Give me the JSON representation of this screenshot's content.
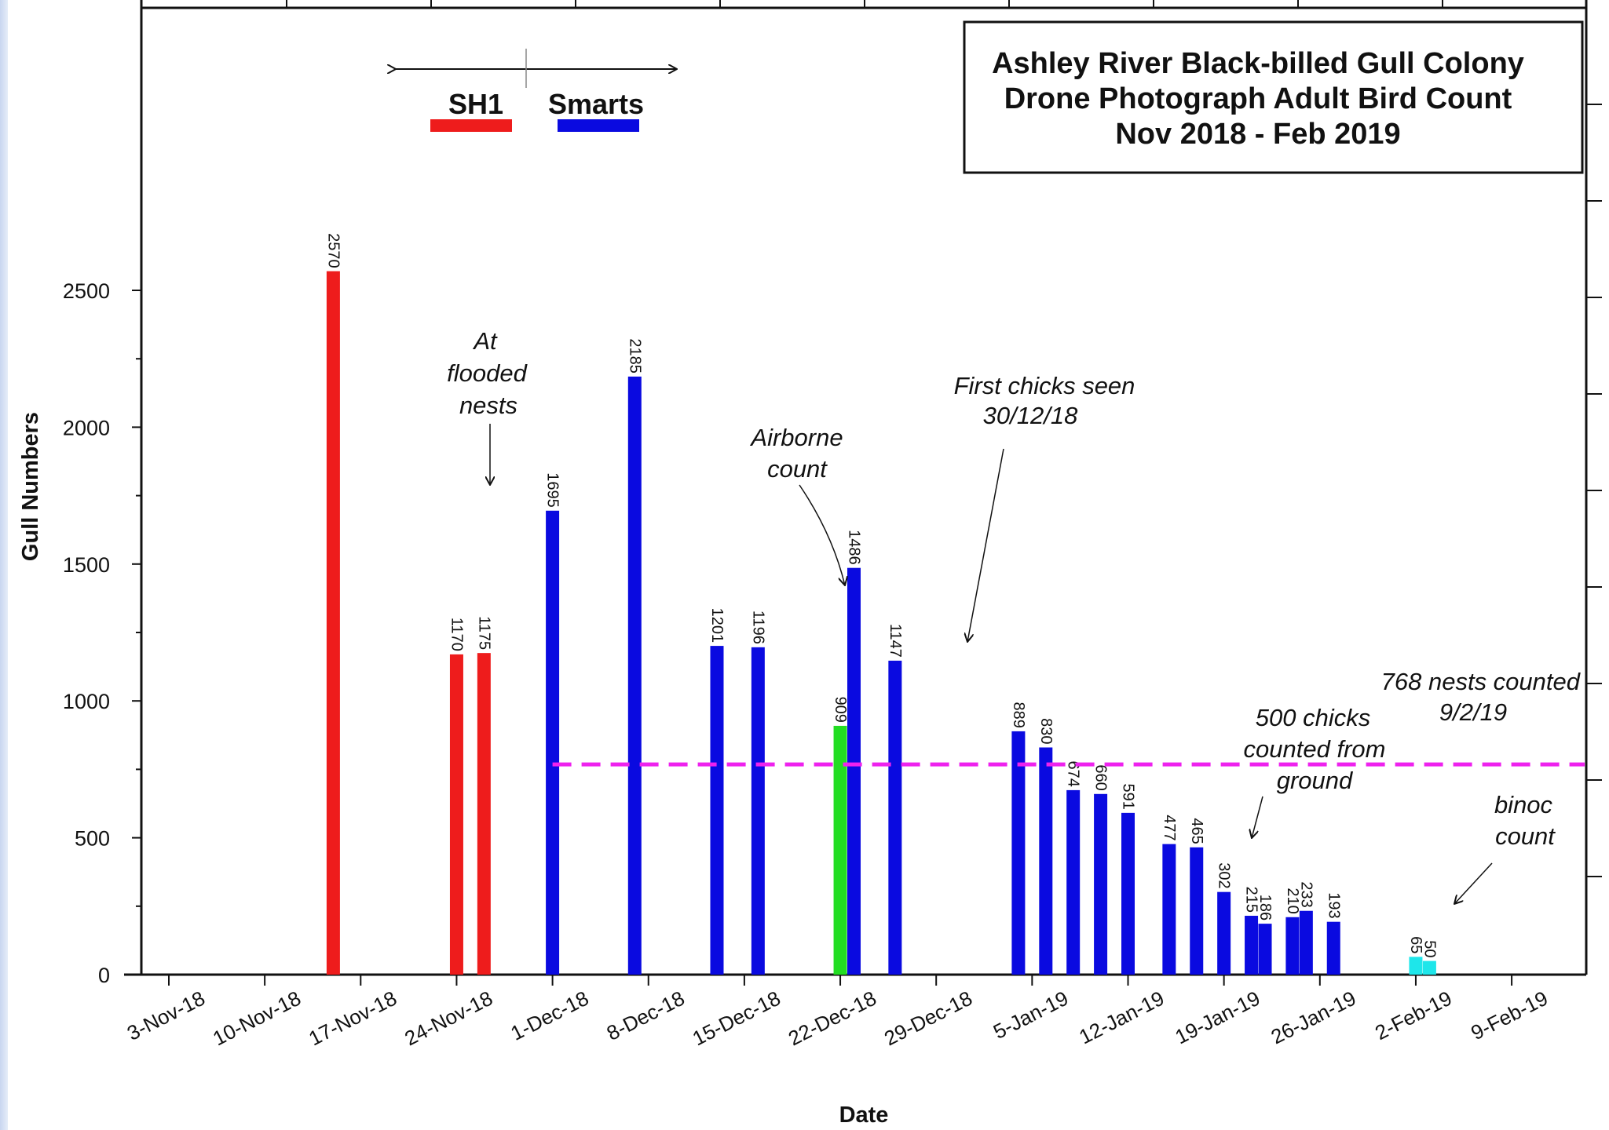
{
  "chart_data": {
    "type": "bar",
    "title": [
      "Ashley River Black-billed Gull Colony",
      "Drone Photograph Adult Bird Count",
      "Nov 2018 - Feb 2019"
    ],
    "xlabel": "Date",
    "ylabel": "Gull Numbers",
    "x_ticks": [
      "3-Nov-18",
      "10-Nov-18",
      "17-Nov-18",
      "24-Nov-18",
      "1-Dec-18",
      "8-Dec-18",
      "15-Dec-18",
      "22-Dec-18",
      "29-Dec-18",
      "5-Jan-19",
      "12-Jan-19",
      "19-Jan-19",
      "26-Jan-19",
      "2-Feb-19",
      "9-Feb-19"
    ],
    "y_ticks": [
      0,
      500,
      1000,
      1500,
      2000,
      2500
    ],
    "ylim": [
      0,
      2700
    ],
    "grid": false,
    "colors": {
      "SH1": "#ee1c1c",
      "Smarts": "#0a0ae0",
      "airborne": "#22dd22",
      "binoc": "#1ee6ea",
      "nests_line": "#ee22ee"
    },
    "legend": {
      "placement": "top-left",
      "items": [
        {
          "label": "SH1",
          "color": "#ee1c1c"
        },
        {
          "label": "Smarts",
          "color": "#0a0ae0"
        }
      ]
    },
    "bars": [
      {
        "date": "2018-11-15",
        "value": 2570,
        "group": "SH1"
      },
      {
        "date": "2018-11-24",
        "value": 1170,
        "group": "SH1"
      },
      {
        "date": "2018-11-26",
        "value": 1175,
        "group": "SH1"
      },
      {
        "date": "2018-12-01",
        "value": 1695,
        "group": "Smarts"
      },
      {
        "date": "2018-12-07",
        "value": 2185,
        "group": "Smarts"
      },
      {
        "date": "2018-12-13",
        "value": 1201,
        "group": "Smarts"
      },
      {
        "date": "2018-12-16",
        "value": 1196,
        "group": "Smarts"
      },
      {
        "date": "2018-12-22",
        "value": 909,
        "group": "airborne"
      },
      {
        "date": "2018-12-23",
        "value": 1486,
        "group": "Smarts"
      },
      {
        "date": "2018-12-26",
        "value": 1147,
        "group": "Smarts"
      },
      {
        "date": "2019-01-04",
        "value": 889,
        "group": "Smarts"
      },
      {
        "date": "2019-01-06",
        "value": 830,
        "group": "Smarts"
      },
      {
        "date": "2019-01-08",
        "value": 674,
        "group": "Smarts"
      },
      {
        "date": "2019-01-10",
        "value": 660,
        "group": "Smarts"
      },
      {
        "date": "2019-01-12",
        "value": 591,
        "group": "Smarts"
      },
      {
        "date": "2019-01-15",
        "value": 477,
        "group": "Smarts"
      },
      {
        "date": "2019-01-17",
        "value": 465,
        "group": "Smarts"
      },
      {
        "date": "2019-01-19",
        "value": 302,
        "group": "Smarts"
      },
      {
        "date": "2019-01-21",
        "value": 215,
        "group": "Smarts"
      },
      {
        "date": "2019-01-22",
        "value": 186,
        "group": "Smarts"
      },
      {
        "date": "2019-01-24",
        "value": 210,
        "group": "Smarts"
      },
      {
        "date": "2019-01-25",
        "value": 233,
        "group": "Smarts"
      },
      {
        "date": "2019-01-27",
        "value": 193,
        "group": "Smarts"
      },
      {
        "date": "2019-02-02",
        "value": 65,
        "group": "binoc"
      },
      {
        "date": "2019-02-03",
        "value": 50,
        "group": "binoc"
      }
    ],
    "reference_line": {
      "value": 768,
      "from_date": "2018-12-01",
      "label": [
        "768 nests counted",
        "9/2/19"
      ]
    },
    "annotations": [
      {
        "text": [
          "At",
          "flooded",
          "nests"
        ]
      },
      {
        "text": [
          "Airborne",
          "count"
        ]
      },
      {
        "text": [
          "First chicks seen",
          "30/12/18"
        ]
      },
      {
        "text": [
          "500 chicks",
          "counted from",
          "ground"
        ]
      },
      {
        "text": [
          "binoc",
          "count"
        ]
      }
    ]
  }
}
